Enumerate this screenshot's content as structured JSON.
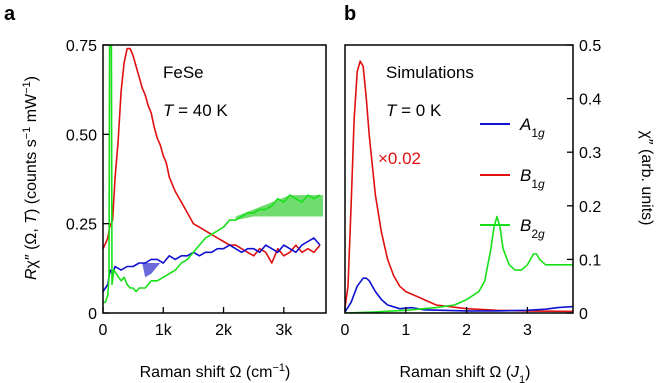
{
  "chart_data": [
    {
      "panel": "a",
      "type": "line",
      "xlabel": "Raman shift Ω (cm−1)",
      "ylabel": "Rχ″ (Ω, T) (counts s−1 mW−1)",
      "xlim": [
        0,
        3700
      ],
      "ylim": [
        0,
        0.75
      ],
      "x_ticks": [
        0,
        1000,
        2000,
        3000
      ],
      "x_tick_labels": [
        "0",
        "1k",
        "2k",
        "3k"
      ],
      "y_ticks": [
        0,
        0.25,
        0.5,
        0.75
      ],
      "y_tick_labels": [
        "0",
        "0.25",
        "0.50",
        "0.75"
      ],
      "annotations": [
        "FeSe",
        "T = 40 K"
      ],
      "series": [
        {
          "color": "#e01010",
          "points": [
            [
              0,
              0.18
            ],
            [
              30,
              0.19
            ],
            [
              80,
              0.21
            ],
            [
              110,
              0.24
            ],
            [
              160,
              0.26
            ],
            [
              200,
              0.38
            ],
            [
              250,
              0.48
            ],
            [
              300,
              0.62
            ],
            [
              350,
              0.7
            ],
            [
              400,
              0.74
            ],
            [
              450,
              0.74
            ],
            [
              500,
              0.72
            ],
            [
              550,
              0.69
            ],
            [
              600,
              0.66
            ],
            [
              650,
              0.63
            ],
            [
              700,
              0.61
            ],
            [
              750,
              0.58
            ],
            [
              800,
              0.56
            ],
            [
              850,
              0.52
            ],
            [
              900,
              0.49
            ],
            [
              950,
              0.47
            ],
            [
              1000,
              0.44
            ],
            [
              1050,
              0.42
            ],
            [
              1100,
              0.38
            ],
            [
              1150,
              0.36
            ],
            [
              1200,
              0.34
            ],
            [
              1300,
              0.31
            ],
            [
              1400,
              0.28
            ],
            [
              1500,
              0.25
            ],
            [
              1600,
              0.24
            ],
            [
              1700,
              0.23
            ],
            [
              1800,
              0.22
            ],
            [
              1900,
              0.21
            ],
            [
              2000,
              0.2
            ],
            [
              2100,
              0.19
            ],
            [
              2200,
              0.19
            ],
            [
              2300,
              0.18
            ],
            [
              2400,
              0.17
            ],
            [
              2500,
              0.16
            ],
            [
              2600,
              0.18
            ],
            [
              2700,
              0.17
            ],
            [
              2800,
              0.14
            ],
            [
              2900,
              0.18
            ],
            [
              3000,
              0.16
            ],
            [
              3100,
              0.17
            ],
            [
              3200,
              0.19
            ],
            [
              3300,
              0.17
            ],
            [
              3400,
              0.18
            ],
            [
              3500,
              0.17
            ],
            [
              3600,
              0.19
            ]
          ]
        },
        {
          "color": "#1010d0",
          "points": [
            [
              0,
              0.06
            ],
            [
              40,
              0.07
            ],
            [
              80,
              0.08
            ],
            [
              120,
              0.12
            ],
            [
              160,
              0.11
            ],
            [
              200,
              0.13
            ],
            [
              300,
              0.12
            ],
            [
              400,
              0.13
            ],
            [
              500,
              0.13
            ],
            [
              600,
              0.14
            ],
            [
              700,
              0.14
            ],
            [
              800,
              0.15
            ],
            [
              900,
              0.15
            ],
            [
              1000,
              0.14
            ],
            [
              1100,
              0.16
            ],
            [
              1200,
              0.15
            ],
            [
              1300,
              0.16
            ],
            [
              1400,
              0.16
            ],
            [
              1500,
              0.17
            ],
            [
              1600,
              0.16
            ],
            [
              1700,
              0.17
            ],
            [
              1800,
              0.17
            ],
            [
              1900,
              0.18
            ],
            [
              2000,
              0.18
            ],
            [
              2100,
              0.19
            ],
            [
              2200,
              0.18
            ],
            [
              2300,
              0.17
            ],
            [
              2400,
              0.18
            ],
            [
              2500,
              0.18
            ],
            [
              2600,
              0.17
            ],
            [
              2700,
              0.19
            ],
            [
              2800,
              0.18
            ],
            [
              2900,
              0.17
            ],
            [
              3000,
              0.19
            ],
            [
              3100,
              0.18
            ],
            [
              3200,
              0.17
            ],
            [
              3300,
              0.19
            ],
            [
              3400,
              0.2
            ],
            [
              3500,
              0.21
            ],
            [
              3600,
              0.19
            ]
          ]
        },
        {
          "color": "#18e018",
          "points": [
            [
              0,
              0.03
            ],
            [
              40,
              0.03
            ],
            [
              80,
              0.05
            ],
            [
              100,
              0.1
            ],
            [
              110,
              0.75
            ],
            [
              140,
              0.75
            ],
            [
              150,
              0.08
            ],
            [
              180,
              0.12
            ],
            [
              220,
              0.11
            ],
            [
              260,
              0.1
            ],
            [
              300,
              0.09
            ],
            [
              350,
              0.1
            ],
            [
              400,
              0.08
            ],
            [
              450,
              0.07
            ],
            [
              500,
              0.07
            ],
            [
              550,
              0.06
            ],
            [
              600,
              0.07
            ],
            [
              650,
              0.07
            ],
            [
              700,
              0.07
            ],
            [
              800,
              0.09
            ],
            [
              900,
              0.09
            ],
            [
              1000,
              0.1
            ],
            [
              1100,
              0.11
            ],
            [
              1200,
              0.12
            ],
            [
              1300,
              0.14
            ],
            [
              1400,
              0.15
            ],
            [
              1500,
              0.17
            ],
            [
              1600,
              0.19
            ],
            [
              1700,
              0.21
            ],
            [
              1800,
              0.22
            ],
            [
              1900,
              0.23
            ],
            [
              2000,
              0.24
            ],
            [
              2100,
              0.26
            ],
            [
              2200,
              0.26
            ],
            [
              2300,
              0.27
            ],
            [
              2400,
              0.28
            ],
            [
              2500,
              0.28
            ],
            [
              2600,
              0.29
            ],
            [
              2700,
              0.29
            ],
            [
              2800,
              0.3
            ],
            [
              2900,
              0.32
            ],
            [
              3000,
              0.31
            ],
            [
              3100,
              0.33
            ],
            [
              3200,
              0.32
            ],
            [
              3300,
              0.31
            ],
            [
              3400,
              0.33
            ],
            [
              3500,
              0.32
            ],
            [
              3600,
              0.33
            ]
          ]
        }
      ],
      "bands": [
        {
          "color": "#3838d0",
          "upper": [
            [
              650,
              0.14
            ],
            [
              800,
              0.14
            ],
            [
              950,
              0.14
            ]
          ],
          "lower": [
            [
              650,
              0.14
            ],
            [
              700,
              0.1
            ],
            [
              800,
              0.11
            ],
            [
              950,
              0.14
            ]
          ]
        },
        {
          "color": "#40d040",
          "upper": [
            [
              2200,
              0.27
            ],
            [
              2500,
              0.29
            ],
            [
              2800,
              0.31
            ],
            [
              3100,
              0.33
            ],
            [
              3400,
              0.33
            ],
            [
              3650,
              0.33
            ]
          ],
          "lower": [
            [
              2200,
              0.26
            ],
            [
              2500,
              0.27
            ],
            [
              2800,
              0.27
            ],
            [
              3100,
              0.27
            ],
            [
              3400,
              0.27
            ],
            [
              3650,
              0.27
            ]
          ]
        }
      ]
    },
    {
      "panel": "b",
      "type": "line",
      "xlabel": "Raman shift Ω (J1)",
      "ylabel": "χ″ (arb. units)",
      "xlim": [
        0,
        3.75
      ],
      "ylim": [
        0,
        0.5
      ],
      "x_ticks": [
        0,
        1,
        2,
        3
      ],
      "x_tick_labels": [
        "0",
        "1",
        "2",
        "3"
      ],
      "y_ticks": [
        0,
        0.1,
        0.2,
        0.3,
        0.4,
        0.5
      ],
      "y_tick_labels": [
        "0",
        "0.1",
        "0.2",
        "0.3",
        "0.4",
        "0.5"
      ],
      "annotations": [
        "Simulations",
        "T = 0 K",
        "×0.02"
      ],
      "legend": {
        "placement": "right",
        "entries": [
          {
            "label": "A1g",
            "color": "#1010d0"
          },
          {
            "label": "B1g",
            "color": "#e01010"
          },
          {
            "label": "B2g",
            "color": "#18e018"
          }
        ]
      },
      "series": [
        {
          "label": "B1g",
          "color": "#e01010",
          "points": [
            [
              0,
              0.01
            ],
            [
              0.05,
              0.05
            ],
            [
              0.1,
              0.2
            ],
            [
              0.15,
              0.36
            ],
            [
              0.2,
              0.45
            ],
            [
              0.25,
              0.47
            ],
            [
              0.3,
              0.46
            ],
            [
              0.35,
              0.4
            ],
            [
              0.4,
              0.33
            ],
            [
              0.5,
              0.22
            ],
            [
              0.6,
              0.15
            ],
            [
              0.7,
              0.1
            ],
            [
              0.8,
              0.07
            ],
            [
              0.9,
              0.05
            ],
            [
              1.0,
              0.04
            ],
            [
              1.2,
              0.03
            ],
            [
              1.5,
              0.015
            ],
            [
              2.0,
              0.008
            ],
            [
              2.5,
              0.005
            ],
            [
              3.0,
              0.004
            ],
            [
              3.75,
              0.003
            ]
          ]
        },
        {
          "label": "A1g",
          "color": "#1010d0",
          "points": [
            [
              0,
              0.002
            ],
            [
              0.1,
              0.02
            ],
            [
              0.2,
              0.05
            ],
            [
              0.3,
              0.065
            ],
            [
              0.35,
              0.065
            ],
            [
              0.4,
              0.06
            ],
            [
              0.5,
              0.04
            ],
            [
              0.6,
              0.025
            ],
            [
              0.7,
              0.015
            ],
            [
              0.9,
              0.008
            ],
            [
              1.1,
              0.01
            ],
            [
              1.3,
              0.006
            ],
            [
              1.6,
              0.005
            ],
            [
              2.0,
              0.004
            ],
            [
              2.5,
              0.004
            ],
            [
              3.0,
              0.005
            ],
            [
              3.3,
              0.007
            ],
            [
              3.5,
              0.01
            ],
            [
              3.75,
              0.012
            ]
          ]
        },
        {
          "label": "B2g",
          "color": "#18e018",
          "points": [
            [
              0,
              0.0
            ],
            [
              0.5,
              0.002
            ],
            [
              1.0,
              0.005
            ],
            [
              1.5,
              0.01
            ],
            [
              1.8,
              0.015
            ],
            [
              2.0,
              0.025
            ],
            [
              2.2,
              0.04
            ],
            [
              2.3,
              0.06
            ],
            [
              2.4,
              0.12
            ],
            [
              2.45,
              0.16
            ],
            [
              2.5,
              0.18
            ],
            [
              2.55,
              0.16
            ],
            [
              2.6,
              0.12
            ],
            [
              2.7,
              0.09
            ],
            [
              2.8,
              0.08
            ],
            [
              2.9,
              0.08
            ],
            [
              3.0,
              0.09
            ],
            [
              3.1,
              0.11
            ],
            [
              3.15,
              0.11
            ],
            [
              3.2,
              0.1
            ],
            [
              3.3,
              0.09
            ],
            [
              3.5,
              0.09
            ],
            [
              3.75,
              0.09
            ]
          ]
        }
      ]
    }
  ]
}
